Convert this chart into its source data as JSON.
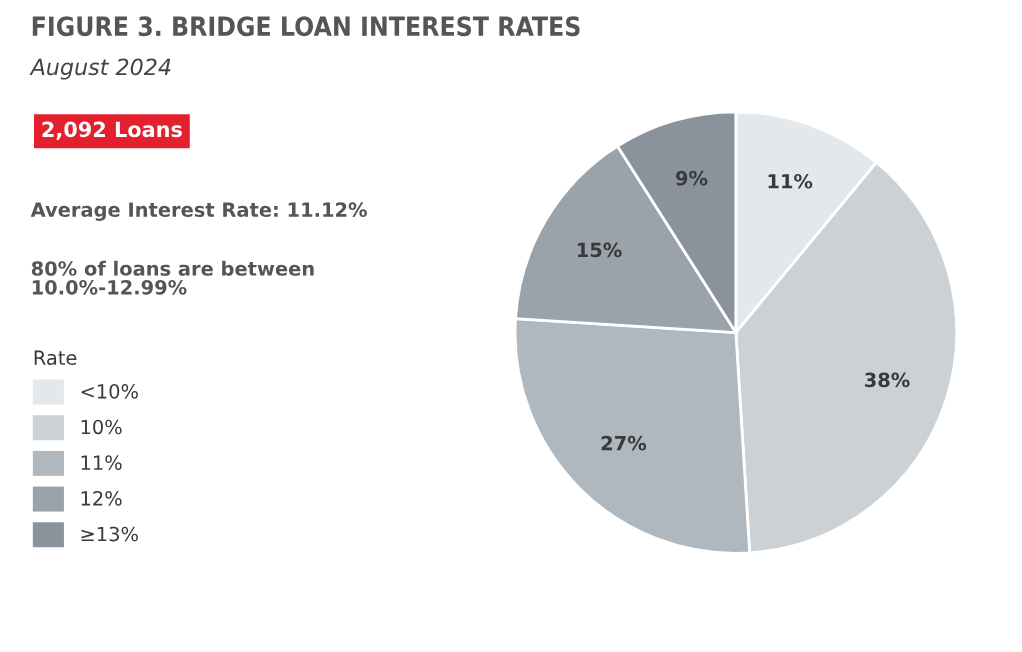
{
  "chart_data": {
    "type": "pie",
    "title": "FIGURE 3. BRIDGE LOAN INTEREST RATES",
    "subtitle": "August 2024",
    "annotations": [
      "2,092 Loans",
      "Average Interest Rate: 11.12%",
      "80% of loans are between\n10.0%-12.99%"
    ],
    "legend_title": "Rate",
    "legend": "left",
    "categories": [
      "<10%",
      "10%",
      "11%",
      "12%",
      "≥13%"
    ],
    "values": [
      11,
      38,
      27,
      15,
      9
    ],
    "colors": [
      "#e5e8eb",
      "#ccd1d5",
      "#afb8bf",
      "#9aa2aa",
      "#8a939b"
    ],
    "value_labels": [
      "11%",
      "38%",
      "27%",
      "15%",
      "9%"
    ]
  }
}
